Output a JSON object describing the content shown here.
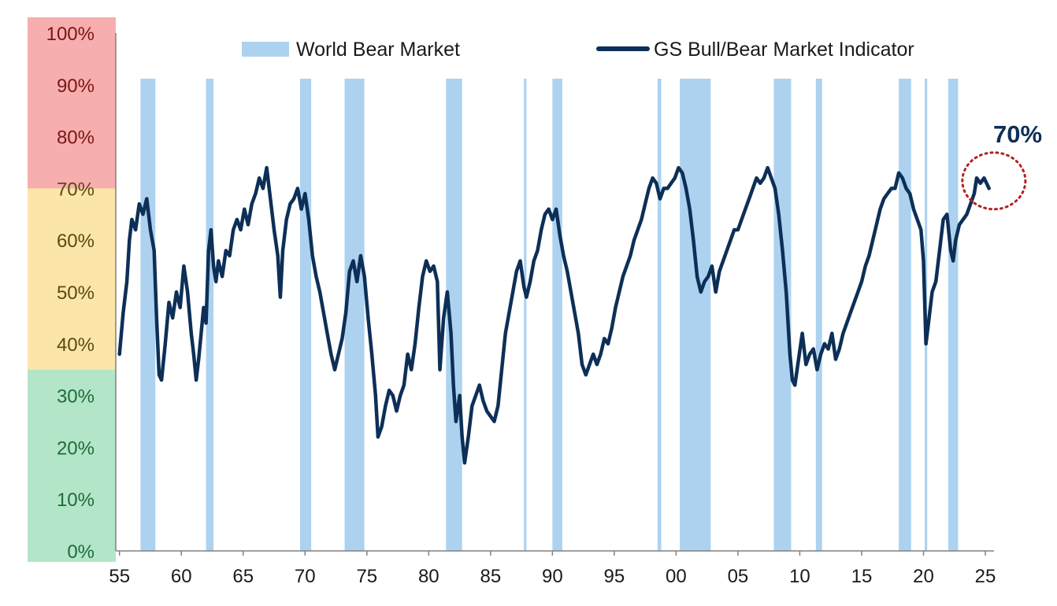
{
  "chart_data": {
    "type": "line",
    "title": "",
    "xlabel": "",
    "ylabel": "",
    "x_tick_labels": [
      "55",
      "60",
      "65",
      "70",
      "75",
      "80",
      "85",
      "90",
      "95",
      "00",
      "05",
      "10",
      "15",
      "20",
      "25"
    ],
    "x_tick_years": [
      1955,
      1960,
      1965,
      1970,
      1975,
      1980,
      1985,
      1990,
      1995,
      2000,
      2005,
      2010,
      2015,
      2020,
      2025
    ],
    "xlim": [
      1954.7,
      2025.7
    ],
    "y_tick_labels": [
      "0%",
      "10%",
      "20%",
      "30%",
      "40%",
      "50%",
      "60%",
      "70%",
      "80%",
      "90%",
      "100%"
    ],
    "y_tick_values": [
      0,
      10,
      20,
      30,
      40,
      50,
      60,
      70,
      80,
      90,
      100
    ],
    "ylim": [
      0,
      100
    ],
    "grid": false,
    "legend_position": "top",
    "risk_zones": [
      {
        "from": 0,
        "to": 35,
        "color": "#b3e6c8",
        "label_color": "#1e6b3a"
      },
      {
        "from": 35,
        "to": 70,
        "color": "#fbe5a8",
        "label_color": "#5a4a10"
      },
      {
        "from": 70,
        "to": 100,
        "color": "#f7aeae",
        "label_color": "#7a1515"
      }
    ],
    "bear_markets": {
      "name": "World Bear Market",
      "color": "#acd2f0",
      "periods": [
        [
          1956.7,
          1957.9
        ],
        [
          1962.0,
          1962.6
        ],
        [
          1969.6,
          1970.5
        ],
        [
          1973.2,
          1974.8
        ],
        [
          1981.4,
          1982.7
        ],
        [
          1987.7,
          1987.9
        ],
        [
          1990.0,
          1990.8
        ],
        [
          1998.5,
          1998.8
        ],
        [
          2000.3,
          2002.8
        ],
        [
          2007.9,
          2009.3
        ],
        [
          2011.3,
          2011.8
        ],
        [
          2018.0,
          2019.0
        ],
        [
          2020.1,
          2020.3
        ],
        [
          2022.0,
          2022.8
        ]
      ]
    },
    "series": [
      {
        "name": "GS Bull/Bear Market Indicator",
        "color": "#0d2f57",
        "points": [
          [
            1955.0,
            38
          ],
          [
            1955.3,
            46
          ],
          [
            1955.6,
            52
          ],
          [
            1955.8,
            60
          ],
          [
            1956.0,
            64
          ],
          [
            1956.3,
            62
          ],
          [
            1956.6,
            67
          ],
          [
            1956.9,
            65
          ],
          [
            1957.2,
            68
          ],
          [
            1957.5,
            62
          ],
          [
            1957.8,
            58
          ],
          [
            1958.0,
            45
          ],
          [
            1958.2,
            34
          ],
          [
            1958.4,
            33
          ],
          [
            1958.7,
            40
          ],
          [
            1959.0,
            48
          ],
          [
            1959.3,
            45
          ],
          [
            1959.6,
            50
          ],
          [
            1959.9,
            47
          ],
          [
            1960.2,
            55
          ],
          [
            1960.5,
            50
          ],
          [
            1960.8,
            42
          ],
          [
            1961.0,
            38
          ],
          [
            1961.2,
            33
          ],
          [
            1961.4,
            37
          ],
          [
            1961.6,
            42
          ],
          [
            1961.8,
            47
          ],
          [
            1962.0,
            44
          ],
          [
            1962.2,
            58
          ],
          [
            1962.4,
            62
          ],
          [
            1962.6,
            55
          ],
          [
            1962.8,
            52
          ],
          [
            1963.0,
            56
          ],
          [
            1963.3,
            53
          ],
          [
            1963.6,
            58
          ],
          [
            1963.9,
            57
          ],
          [
            1964.2,
            62
          ],
          [
            1964.5,
            64
          ],
          [
            1964.8,
            62
          ],
          [
            1965.1,
            66
          ],
          [
            1965.4,
            63
          ],
          [
            1965.7,
            67
          ],
          [
            1966.0,
            69
          ],
          [
            1966.3,
            72
          ],
          [
            1966.6,
            70
          ],
          [
            1966.9,
            74
          ],
          [
            1967.2,
            68
          ],
          [
            1967.5,
            62
          ],
          [
            1967.8,
            57
          ],
          [
            1968.0,
            49
          ],
          [
            1968.2,
            58
          ],
          [
            1968.5,
            64
          ],
          [
            1968.8,
            67
          ],
          [
            1969.1,
            68
          ],
          [
            1969.4,
            70
          ],
          [
            1969.7,
            66
          ],
          [
            1970.0,
            69
          ],
          [
            1970.3,
            64
          ],
          [
            1970.6,
            57
          ],
          [
            1970.9,
            53
          ],
          [
            1971.2,
            50
          ],
          [
            1971.5,
            46
          ],
          [
            1971.8,
            42
          ],
          [
            1972.1,
            38
          ],
          [
            1972.4,
            35
          ],
          [
            1972.7,
            38
          ],
          [
            1973.0,
            41
          ],
          [
            1973.3,
            46
          ],
          [
            1973.6,
            54
          ],
          [
            1973.9,
            56
          ],
          [
            1974.2,
            52
          ],
          [
            1974.5,
            57
          ],
          [
            1974.8,
            53
          ],
          [
            1975.1,
            45
          ],
          [
            1975.4,
            38
          ],
          [
            1975.7,
            30
          ],
          [
            1975.9,
            22
          ],
          [
            1976.2,
            24
          ],
          [
            1976.5,
            28
          ],
          [
            1976.8,
            31
          ],
          [
            1977.1,
            30
          ],
          [
            1977.4,
            27
          ],
          [
            1977.7,
            30
          ],
          [
            1978.0,
            32
          ],
          [
            1978.3,
            38
          ],
          [
            1978.6,
            35
          ],
          [
            1978.9,
            40
          ],
          [
            1979.2,
            47
          ],
          [
            1979.5,
            53
          ],
          [
            1979.8,
            56
          ],
          [
            1980.1,
            54
          ],
          [
            1980.4,
            55
          ],
          [
            1980.7,
            52
          ],
          [
            1980.9,
            35
          ],
          [
            1981.2,
            45
          ],
          [
            1981.5,
            50
          ],
          [
            1981.8,
            42
          ],
          [
            1982.0,
            32
          ],
          [
            1982.2,
            25
          ],
          [
            1982.5,
            30
          ],
          [
            1982.7,
            22
          ],
          [
            1982.9,
            17
          ],
          [
            1983.2,
            22
          ],
          [
            1983.5,
            28
          ],
          [
            1983.8,
            30
          ],
          [
            1984.1,
            32
          ],
          [
            1984.4,
            29
          ],
          [
            1984.7,
            27
          ],
          [
            1985.0,
            26
          ],
          [
            1985.3,
            25
          ],
          [
            1985.6,
            28
          ],
          [
            1985.9,
            35
          ],
          [
            1986.2,
            42
          ],
          [
            1986.5,
            46
          ],
          [
            1986.8,
            50
          ],
          [
            1987.1,
            54
          ],
          [
            1987.4,
            56
          ],
          [
            1987.7,
            51
          ],
          [
            1987.9,
            49
          ],
          [
            1988.2,
            52
          ],
          [
            1988.5,
            56
          ],
          [
            1988.8,
            58
          ],
          [
            1989.1,
            62
          ],
          [
            1989.4,
            65
          ],
          [
            1989.7,
            66
          ],
          [
            1990.0,
            64
          ],
          [
            1990.3,
            66
          ],
          [
            1990.6,
            61
          ],
          [
            1990.9,
            57
          ],
          [
            1991.2,
            54
          ],
          [
            1991.5,
            50
          ],
          [
            1991.8,
            46
          ],
          [
            1992.1,
            42
          ],
          [
            1992.4,
            36
          ],
          [
            1992.7,
            34
          ],
          [
            1993.0,
            36
          ],
          [
            1993.3,
            38
          ],
          [
            1993.6,
            36
          ],
          [
            1993.9,
            38
          ],
          [
            1994.2,
            41
          ],
          [
            1994.5,
            40
          ],
          [
            1994.8,
            43
          ],
          [
            1995.1,
            47
          ],
          [
            1995.4,
            50
          ],
          [
            1995.7,
            53
          ],
          [
            1996.0,
            55
          ],
          [
            1996.3,
            57
          ],
          [
            1996.6,
            60
          ],
          [
            1996.9,
            62
          ],
          [
            1997.2,
            64
          ],
          [
            1997.5,
            67
          ],
          [
            1997.8,
            70
          ],
          [
            1998.1,
            72
          ],
          [
            1998.4,
            71
          ],
          [
            1998.7,
            68
          ],
          [
            1999.0,
            70
          ],
          [
            1999.3,
            70
          ],
          [
            1999.6,
            71
          ],
          [
            1999.9,
            72
          ],
          [
            2000.2,
            74
          ],
          [
            2000.5,
            73
          ],
          [
            2000.8,
            70
          ],
          [
            2001.1,
            66
          ],
          [
            2001.4,
            60
          ],
          [
            2001.7,
            53
          ],
          [
            2002.0,
            50
          ],
          [
            2002.3,
            52
          ],
          [
            2002.6,
            53
          ],
          [
            2002.9,
            55
          ],
          [
            2003.2,
            50
          ],
          [
            2003.5,
            54
          ],
          [
            2003.8,
            56
          ],
          [
            2004.1,
            58
          ],
          [
            2004.4,
            60
          ],
          [
            2004.7,
            62
          ],
          [
            2005.0,
            62
          ],
          [
            2005.3,
            64
          ],
          [
            2005.6,
            66
          ],
          [
            2005.9,
            68
          ],
          [
            2006.2,
            70
          ],
          [
            2006.5,
            72
          ],
          [
            2006.8,
            71
          ],
          [
            2007.1,
            72
          ],
          [
            2007.4,
            74
          ],
          [
            2007.7,
            72
          ],
          [
            2008.0,
            70
          ],
          [
            2008.3,
            65
          ],
          [
            2008.6,
            58
          ],
          [
            2008.9,
            50
          ],
          [
            2009.2,
            38
          ],
          [
            2009.4,
            33
          ],
          [
            2009.6,
            32
          ],
          [
            2009.9,
            37
          ],
          [
            2010.2,
            42
          ],
          [
            2010.5,
            36
          ],
          [
            2010.8,
            38
          ],
          [
            2011.1,
            39
          ],
          [
            2011.4,
            35
          ],
          [
            2011.7,
            38
          ],
          [
            2012.0,
            40
          ],
          [
            2012.3,
            39
          ],
          [
            2012.6,
            42
          ],
          [
            2012.9,
            37
          ],
          [
            2013.2,
            39
          ],
          [
            2013.5,
            42
          ],
          [
            2013.8,
            44
          ],
          [
            2014.1,
            46
          ],
          [
            2014.4,
            48
          ],
          [
            2014.7,
            50
          ],
          [
            2015.0,
            52
          ],
          [
            2015.3,
            55
          ],
          [
            2015.6,
            57
          ],
          [
            2015.9,
            60
          ],
          [
            2016.2,
            63
          ],
          [
            2016.5,
            66
          ],
          [
            2016.8,
            68
          ],
          [
            2017.1,
            69
          ],
          [
            2017.4,
            70
          ],
          [
            2017.7,
            70
          ],
          [
            2018.0,
            73
          ],
          [
            2018.3,
            72
          ],
          [
            2018.6,
            70
          ],
          [
            2018.9,
            69
          ],
          [
            2019.2,
            66
          ],
          [
            2019.5,
            64
          ],
          [
            2019.8,
            62
          ],
          [
            2020.0,
            56
          ],
          [
            2020.2,
            40
          ],
          [
            2020.4,
            44
          ],
          [
            2020.7,
            50
          ],
          [
            2021.0,
            52
          ],
          [
            2021.3,
            58
          ],
          [
            2021.6,
            64
          ],
          [
            2021.9,
            65
          ],
          [
            2022.2,
            58
          ],
          [
            2022.4,
            56
          ],
          [
            2022.6,
            60
          ],
          [
            2022.9,
            63
          ],
          [
            2023.2,
            64
          ],
          [
            2023.5,
            65
          ],
          [
            2023.8,
            67
          ],
          [
            2024.1,
            69
          ],
          [
            2024.3,
            72
          ],
          [
            2024.6,
            71
          ],
          [
            2024.9,
            72
          ],
          [
            2025.1,
            71
          ],
          [
            2025.3,
            70
          ]
        ]
      }
    ],
    "annotation": {
      "text": "70%",
      "x": 2024.8,
      "y": 71,
      "text_color": "#0d2f57",
      "circle_color": "#b22222"
    }
  }
}
